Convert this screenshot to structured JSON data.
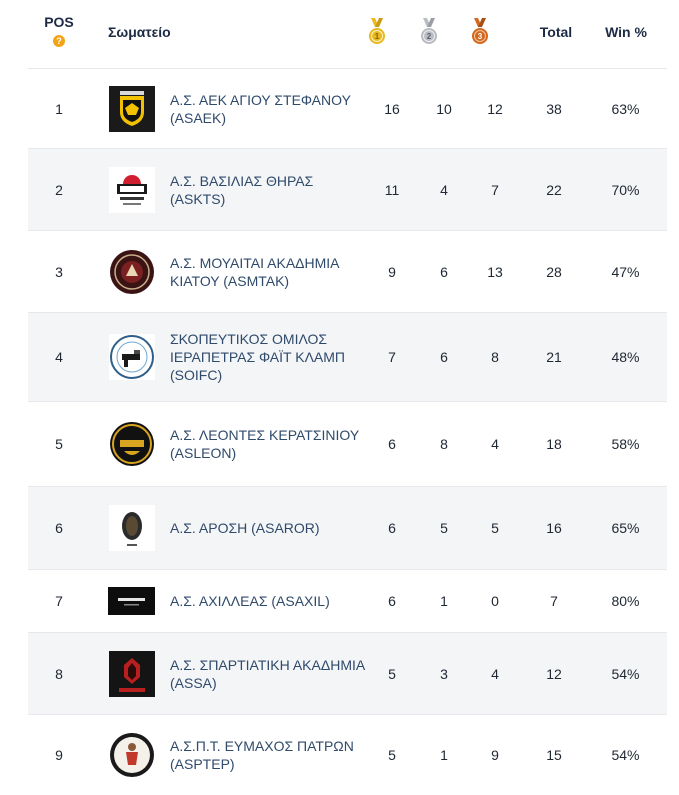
{
  "header": {
    "pos": "POS",
    "help": "?",
    "club": "Σωματείο",
    "gold": "1",
    "silver": "2",
    "bronze": "3",
    "total": "Total",
    "win": "Win %"
  },
  "colors": {
    "gold": "#e8b923",
    "silver": "#b9bcc2",
    "bronze": "#d2691e",
    "help": "#f2a417"
  },
  "rows": [
    {
      "pos": "1",
      "name": "Α.Σ. ΑΕΚ ΑΓΙΟΥ ΣΤΕΦΑΝΟΥ (ASAEK)",
      "gold": "16",
      "silver": "10",
      "bronze": "12",
      "total": "38",
      "win": "63%",
      "logo": "aek-logo"
    },
    {
      "pos": "2",
      "name": "Α.Σ. ΒΑΣΙΛΙΑΣ ΘΗΡΑΣ (ASKTS)",
      "gold": "11",
      "silver": "4",
      "bronze": "7",
      "total": "22",
      "win": "70%",
      "logo": "kteam-logo"
    },
    {
      "pos": "3",
      "name": "Α.Σ. ΜΟΥΑΙΤΑΙ ΑΚΑΔΗΜΙΑ ΚΙΑΤΟΥ (ASMTAK)",
      "gold": "9",
      "silver": "6",
      "bronze": "13",
      "total": "28",
      "win": "47%",
      "logo": "muaythai-kiato-logo"
    },
    {
      "pos": "4",
      "name": "ΣΚΟΠΕΥΤΙΚΟΣ ΟΜΙΛΟΣ ΙΕΡΑΠΕΤΡΑΣ ΦΑΪΤ ΚΛΑΜΠ (SOIFC)",
      "gold": "7",
      "silver": "6",
      "bronze": "8",
      "total": "21",
      "win": "48%",
      "logo": "shooting-club-logo"
    },
    {
      "pos": "5",
      "name": "Α.Σ. ΛΕΟΝΤΕΣ ΚΕΡΑΤΣΙΝΙΟΥ (ASLEON)",
      "gold": "6",
      "silver": "8",
      "bronze": "4",
      "total": "18",
      "win": "58%",
      "logo": "leontes-logo"
    },
    {
      "pos": "6",
      "name": "Α.Σ. ΑΡΟΣΗ (ASAROR)",
      "gold": "6",
      "silver": "5",
      "bronze": "5",
      "total": "16",
      "win": "65%",
      "logo": "arosi-logo"
    },
    {
      "pos": "7",
      "name": "Α.Σ. ΑΧΙΛΛΕΑΣ (ASAXIL)",
      "gold": "6",
      "silver": "1",
      "bronze": "0",
      "total": "7",
      "win": "80%",
      "logo": "achilleas-logo"
    },
    {
      "pos": "8",
      "name": "Α.Σ. ΣΠΑΡΤΙΑΤΙΚΗ ΑΚΑΔΗΜΙΑ (ASSA)",
      "gold": "5",
      "silver": "3",
      "bronze": "4",
      "total": "12",
      "win": "54%",
      "logo": "spartan-logo"
    },
    {
      "pos": "9",
      "name": "Α.Σ.Π.Τ. ΕΥΜΑΧΟΣ ΠΑΤΡΩΝ (ASPTEP)",
      "gold": "5",
      "silver": "1",
      "bronze": "9",
      "total": "15",
      "win": "54%",
      "logo": "eymachos-logo"
    }
  ]
}
